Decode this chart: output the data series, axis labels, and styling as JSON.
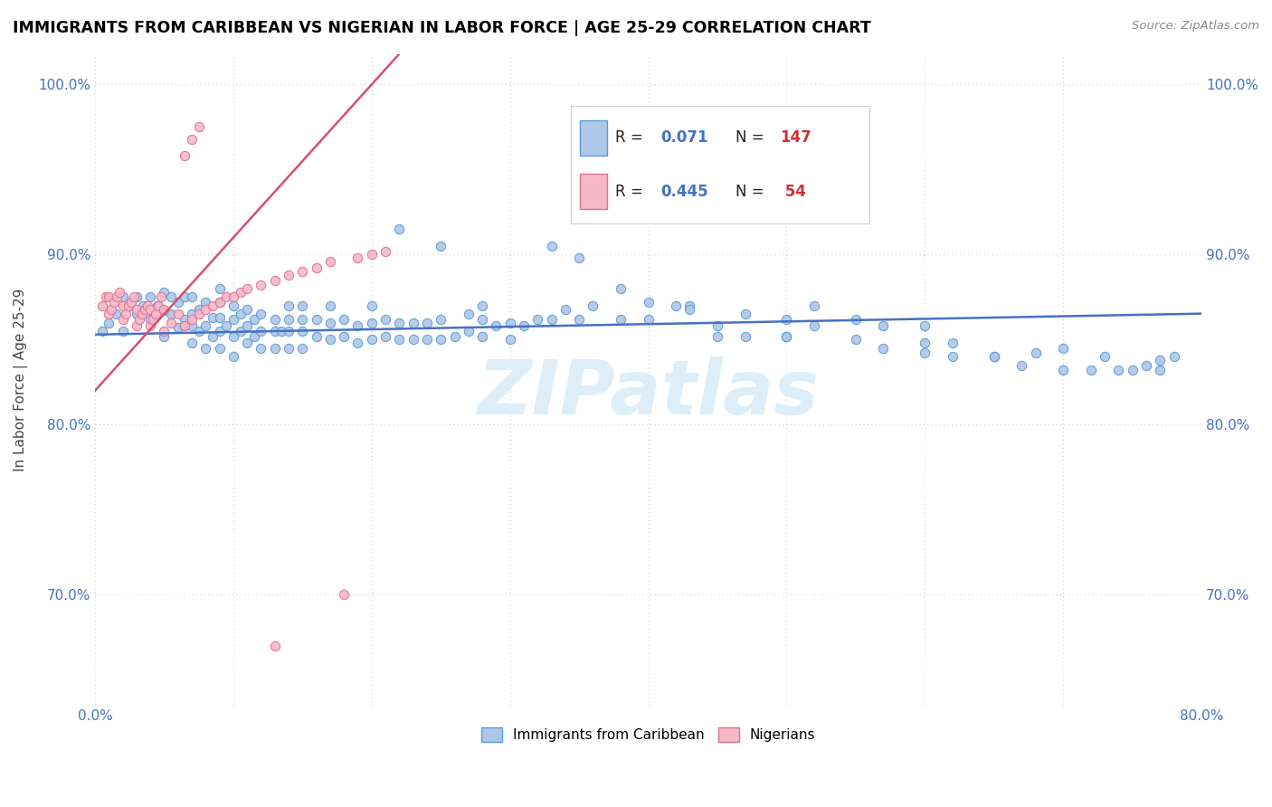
{
  "title": "IMMIGRANTS FROM CARIBBEAN VS NIGERIAN IN LABOR FORCE | AGE 25-29 CORRELATION CHART",
  "source": "Source: ZipAtlas.com",
  "ylabel": "In Labor Force | Age 25-29",
  "xlim": [
    0.0,
    0.8
  ],
  "ylim": [
    0.635,
    1.018
  ],
  "caribbean_R": 0.071,
  "caribbean_N": 147,
  "nigerian_R": 0.445,
  "nigerian_N": 54,
  "caribbean_color": "#aec6e8",
  "nigerian_color": "#f5b8c8",
  "caribbean_edge_color": "#5b9bd5",
  "nigerian_edge_color": "#e07090",
  "caribbean_line_color": "#4472c4",
  "nigerian_line_color": "#d94f6e",
  "watermark_color": "#ddeef8",
  "yticks": [
    0.7,
    0.8,
    0.9,
    1.0
  ],
  "xticks": [
    0.0,
    0.1,
    0.2,
    0.3,
    0.4,
    0.5,
    0.6,
    0.7,
    0.8
  ],
  "caribbean_x": [
    0.005,
    0.01,
    0.015,
    0.02,
    0.02,
    0.025,
    0.03,
    0.03,
    0.035,
    0.04,
    0.04,
    0.045,
    0.05,
    0.05,
    0.05,
    0.055,
    0.055,
    0.06,
    0.06,
    0.065,
    0.065,
    0.065,
    0.07,
    0.07,
    0.07,
    0.07,
    0.075,
    0.075,
    0.08,
    0.08,
    0.08,
    0.085,
    0.085,
    0.09,
    0.09,
    0.09,
    0.09,
    0.09,
    0.095,
    0.1,
    0.1,
    0.1,
    0.1,
    0.105,
    0.105,
    0.11,
    0.11,
    0.11,
    0.115,
    0.115,
    0.12,
    0.12,
    0.12,
    0.13,
    0.13,
    0.13,
    0.135,
    0.14,
    0.14,
    0.14,
    0.14,
    0.15,
    0.15,
    0.15,
    0.15,
    0.16,
    0.16,
    0.17,
    0.17,
    0.17,
    0.18,
    0.18,
    0.19,
    0.19,
    0.2,
    0.2,
    0.2,
    0.21,
    0.21,
    0.22,
    0.22,
    0.23,
    0.23,
    0.24,
    0.24,
    0.25,
    0.25,
    0.26,
    0.27,
    0.27,
    0.28,
    0.28,
    0.28,
    0.29,
    0.3,
    0.3,
    0.31,
    0.32,
    0.33,
    0.34,
    0.35,
    0.36,
    0.38,
    0.4,
    0.42,
    0.43,
    0.45,
    0.47,
    0.5,
    0.5,
    0.52,
    0.55,
    0.57,
    0.6,
    0.6,
    0.62,
    0.65,
    0.67,
    0.7,
    0.7,
    0.72,
    0.73,
    0.74,
    0.75,
    0.76,
    0.77,
    0.77,
    0.78,
    0.22,
    0.25,
    0.33,
    0.35,
    0.38,
    0.4,
    0.43,
    0.45,
    0.47,
    0.5,
    0.52,
    0.55,
    0.57,
    0.6,
    0.62,
    0.65,
    0.68
  ],
  "caribbean_y": [
    0.855,
    0.86,
    0.865,
    0.855,
    0.875,
    0.87,
    0.875,
    0.865,
    0.87,
    0.862,
    0.875,
    0.87,
    0.852,
    0.867,
    0.878,
    0.865,
    0.875,
    0.857,
    0.872,
    0.858,
    0.862,
    0.875,
    0.848,
    0.858,
    0.865,
    0.875,
    0.855,
    0.868,
    0.845,
    0.858,
    0.872,
    0.852,
    0.863,
    0.845,
    0.855,
    0.863,
    0.872,
    0.88,
    0.858,
    0.84,
    0.852,
    0.862,
    0.87,
    0.855,
    0.865,
    0.848,
    0.858,
    0.868,
    0.852,
    0.862,
    0.845,
    0.855,
    0.865,
    0.845,
    0.855,
    0.862,
    0.855,
    0.845,
    0.855,
    0.862,
    0.87,
    0.845,
    0.855,
    0.862,
    0.87,
    0.852,
    0.862,
    0.85,
    0.86,
    0.87,
    0.852,
    0.862,
    0.848,
    0.858,
    0.85,
    0.86,
    0.87,
    0.852,
    0.862,
    0.85,
    0.86,
    0.85,
    0.86,
    0.85,
    0.86,
    0.85,
    0.862,
    0.852,
    0.855,
    0.865,
    0.852,
    0.862,
    0.87,
    0.858,
    0.85,
    0.86,
    0.858,
    0.862,
    0.862,
    0.868,
    0.862,
    0.87,
    0.862,
    0.862,
    0.87,
    0.87,
    0.852,
    0.865,
    0.852,
    0.862,
    0.87,
    0.862,
    0.858,
    0.848,
    0.858,
    0.848,
    0.84,
    0.835,
    0.832,
    0.845,
    0.832,
    0.84,
    0.832,
    0.832,
    0.835,
    0.838,
    0.832,
    0.84,
    0.915,
    0.905,
    0.905,
    0.898,
    0.88,
    0.872,
    0.868,
    0.858,
    0.852,
    0.852,
    0.858,
    0.85,
    0.845,
    0.842,
    0.84,
    0.84,
    0.842
  ],
  "nigerian_x": [
    0.005,
    0.008,
    0.01,
    0.01,
    0.012,
    0.014,
    0.016,
    0.018,
    0.02,
    0.02,
    0.022,
    0.024,
    0.026,
    0.028,
    0.03,
    0.03,
    0.032,
    0.034,
    0.036,
    0.038,
    0.04,
    0.04,
    0.042,
    0.044,
    0.046,
    0.048,
    0.05,
    0.05,
    0.055,
    0.06,
    0.065,
    0.07,
    0.075,
    0.08,
    0.085,
    0.09,
    0.095,
    0.1,
    0.105,
    0.11,
    0.12,
    0.13,
    0.14,
    0.15,
    0.16,
    0.17,
    0.18,
    0.19,
    0.2,
    0.21,
    0.065,
    0.07,
    0.075,
    0.13
  ],
  "nigerian_y": [
    0.87,
    0.875,
    0.865,
    0.875,
    0.868,
    0.872,
    0.875,
    0.878,
    0.862,
    0.87,
    0.865,
    0.87,
    0.872,
    0.875,
    0.858,
    0.868,
    0.862,
    0.865,
    0.868,
    0.87,
    0.858,
    0.868,
    0.862,
    0.865,
    0.87,
    0.875,
    0.855,
    0.868,
    0.86,
    0.865,
    0.858,
    0.862,
    0.865,
    0.868,
    0.87,
    0.872,
    0.875,
    0.875,
    0.878,
    0.88,
    0.882,
    0.885,
    0.888,
    0.89,
    0.892,
    0.896,
    0.7,
    0.898,
    0.9,
    0.902,
    0.958,
    0.968,
    0.975,
    0.67
  ]
}
